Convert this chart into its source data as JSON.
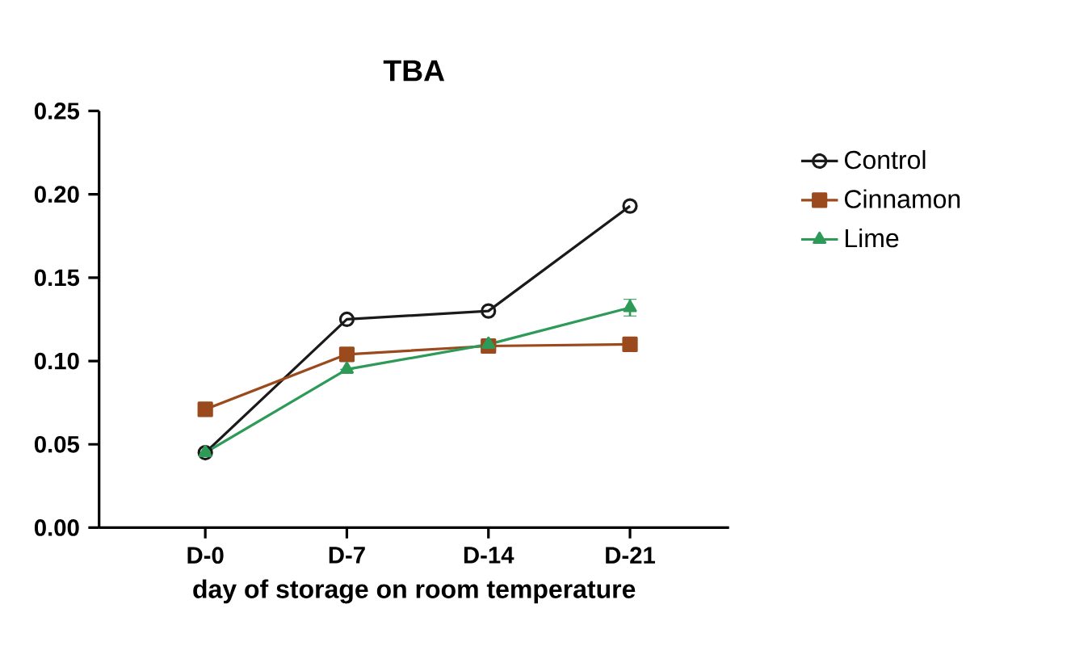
{
  "chart_data": {
    "type": "line",
    "title": "TBA",
    "xlabel": "day of storage on room temperature",
    "categories": [
      "D-0",
      "D-7",
      "D-14",
      "D-21"
    ],
    "series": [
      {
        "name": "Control",
        "color": "#1a1a1a",
        "marker": "circle",
        "values": [
          0.045,
          0.125,
          0.13,
          0.193
        ]
      },
      {
        "name": "Cinnamon",
        "color": "#9a4a1c",
        "marker": "square",
        "values": [
          0.071,
          0.104,
          0.109,
          0.11
        ]
      },
      {
        "name": "Lime",
        "color": "#2e9a58",
        "marker": "triangle",
        "values": [
          0.045,
          0.095,
          0.11,
          0.132
        ],
        "errors": [
          null,
          null,
          null,
          0.005
        ]
      }
    ],
    "ylim": [
      0,
      0.25
    ],
    "yticks": [
      {
        "value": 0,
        "label": "0.00"
      },
      {
        "value": 0.05,
        "label": "0.05"
      },
      {
        "value": 0.1,
        "label": "0.10"
      },
      {
        "value": 0.15,
        "label": "0.15"
      },
      {
        "value": 0.2,
        "label": "0.20"
      },
      {
        "value": 0.25,
        "label": "0.25"
      }
    ],
    "legend": "right",
    "grid": false
  }
}
